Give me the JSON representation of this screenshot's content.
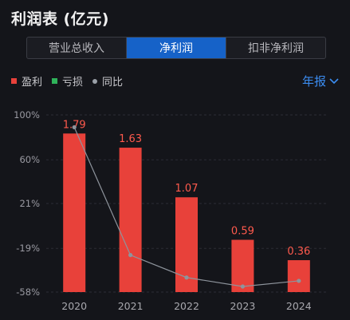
{
  "header": {
    "title": "利润表 (亿元)"
  },
  "tabs": [
    {
      "label": "营业总收入",
      "active": false
    },
    {
      "label": "净利润",
      "active": true
    },
    {
      "label": "扣非净利润",
      "active": false
    }
  ],
  "legend": [
    {
      "label": "盈利",
      "color": "#e8413a",
      "shape": "square"
    },
    {
      "label": "亏损",
      "color": "#2fb35a",
      "shape": "square"
    },
    {
      "label": "同比",
      "color": "#9aa0a8",
      "shape": "circle"
    }
  ],
  "period_selector": {
    "label": "年报",
    "icon": "chevron-down-icon"
  },
  "chart_data": {
    "type": "bar",
    "categories": [
      "2020",
      "2021",
      "2022",
      "2023",
      "2024"
    ],
    "series": [
      {
        "name": "盈利",
        "axis": "left",
        "values": [
          1.79,
          1.63,
          1.07,
          0.59,
          0.36
        ],
        "color": "#e8413a"
      },
      {
        "name": "同比",
        "type": "line",
        "axis": "right",
        "values": [
          89,
          -25,
          -45,
          -53,
          -48
        ],
        "color": "#8e949c"
      }
    ],
    "value_labels": [
      "1.79",
      "1.63",
      "1.07",
      "0.59",
      "0.36"
    ],
    "y_ticks": [
      "100%",
      "60%",
      "21%",
      "-19%",
      "-58%"
    ],
    "y_tick_values": [
      100,
      60,
      21,
      -19,
      -58
    ],
    "ylim_bars": [
      0,
      2.0
    ],
    "ylim_line": [
      -58,
      100
    ],
    "grid": true,
    "legend_position": "top-left"
  }
}
